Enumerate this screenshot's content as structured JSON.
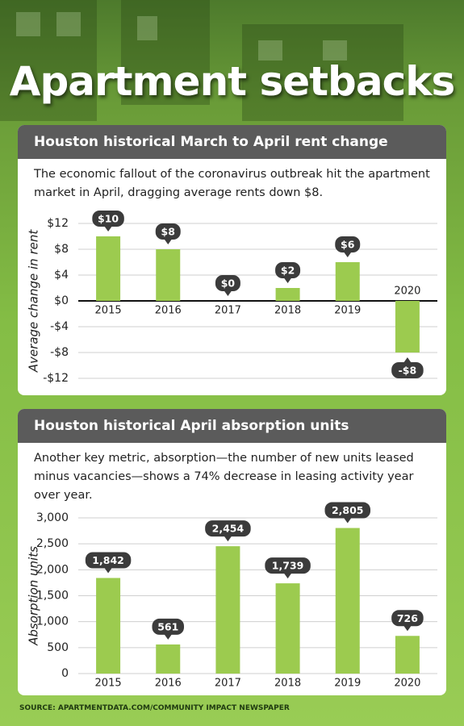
{
  "title": "Apartment setbacks",
  "source": "SOURCE: APARTMENTDATA.COM/COMMUNITY IMPACT NEWSPAPER",
  "chart_data": [
    {
      "type": "bar",
      "title": "Houston historical March to April rent change",
      "subtitle": "The economic fallout of the coronavirus outbreak hit the apartment market in April, dragging average rents down $8.",
      "ylabel": "Average change in rent",
      "categories": [
        "2015",
        "2016",
        "2017",
        "2018",
        "2019",
        "2020"
      ],
      "values": [
        10,
        8,
        0,
        2,
        6,
        -8
      ],
      "value_labels": [
        "$10",
        "$8",
        "$0",
        "$2",
        "$6",
        "-$8"
      ],
      "color": "#9ccb4f",
      "ylim": [
        -12,
        12
      ],
      "yticks": [
        {
          "value": 12,
          "label": "$12"
        },
        {
          "value": 8,
          "label": "$8"
        },
        {
          "value": 4,
          "label": "$4"
        },
        {
          "value": 0,
          "label": "$0"
        },
        {
          "value": -4,
          "label": "-$4"
        },
        {
          "value": -8,
          "label": "-$8"
        },
        {
          "value": -12,
          "label": "-$12"
        }
      ],
      "grid": true
    },
    {
      "type": "bar",
      "title": "Houston historical April absorption units",
      "subtitle": "Another key metric, absorption—the number of new units leased minus vacancies—shows a 74% decrease in leasing activity year over year.",
      "ylabel": "Absorption units",
      "categories": [
        "2015",
        "2016",
        "2017",
        "2018",
        "2019",
        "2020"
      ],
      "values": [
        1842,
        561,
        2454,
        1739,
        2805,
        726
      ],
      "value_labels": [
        "1,842",
        "561",
        "2,454",
        "1,739",
        "2,805",
        "726"
      ],
      "color": "#9ccb4f",
      "ylim": [
        0,
        3000
      ],
      "yticks": [
        0,
        500,
        {
          "value": 1000,
          "label": "1,000"
        },
        {
          "value": 1500,
          "label": "1,500"
        },
        {
          "value": 2000,
          "label": "2,000"
        },
        {
          "value": 2500,
          "label": "2,500"
        },
        {
          "value": 3000,
          "label": "3,000"
        }
      ],
      "grid": true
    }
  ]
}
